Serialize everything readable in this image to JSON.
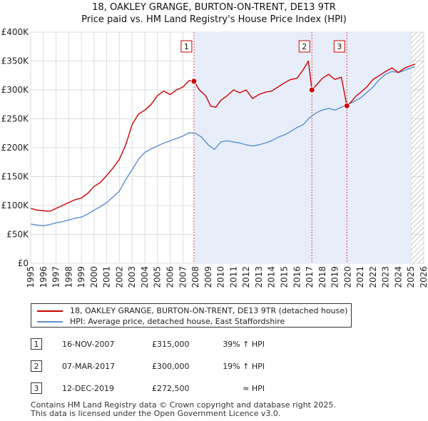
{
  "title_line1": "18, OAKLEY GRANGE, BURTON-ON-TRENT, DE13 9TR",
  "title_line2": "Price paid vs. HM Land Registry's House Price Index (HPI)",
  "chart_data": {
    "type": "line",
    "title": "18, OAKLEY GRANGE, BURTON-ON-TRENT, DE13 9TR — Price paid vs. HM Land Registry's House Price Index (HPI)",
    "xlabel": "",
    "ylabel": "",
    "xlim": [
      1995,
      2026
    ],
    "ylim": [
      0,
      400000
    ],
    "x_ticks": [
      "1995",
      "1996",
      "1997",
      "1998",
      "1999",
      "2000",
      "2001",
      "2002",
      "2003",
      "2004",
      "2005",
      "2006",
      "2007",
      "2008",
      "2009",
      "2010",
      "2011",
      "2012",
      "2013",
      "2014",
      "2015",
      "2016",
      "2017",
      "2018",
      "2019",
      "2020",
      "2021",
      "2022",
      "2023",
      "2024",
      "2025",
      "2026"
    ],
    "y_ticks": [
      {
        "value": 0,
        "label": "£0"
      },
      {
        "value": 50000,
        "label": "£50K"
      },
      {
        "value": 100000,
        "label": "£100K"
      },
      {
        "value": 150000,
        "label": "£150K"
      },
      {
        "value": 200000,
        "label": "£200K"
      },
      {
        "value": 250000,
        "label": "£250K"
      },
      {
        "value": 300000,
        "label": "£300K"
      },
      {
        "value": 350000,
        "label": "£350K"
      },
      {
        "value": 400000,
        "label": "£400K"
      }
    ],
    "grid": true,
    "shaded_ranges": [
      [
        2007.88,
        2025.0
      ]
    ],
    "hatched_from": 2025.0,
    "colors": {
      "property": "#cc0000",
      "hpi": "#5b8fd0",
      "shade": "#e8eef9"
    },
    "series": [
      {
        "name": "18, OAKLEY GRANGE, BURTON-ON-TRENT, DE13 9TR (detached house)",
        "x": [
          1995.0,
          1995.5,
          1996.0,
          1996.5,
          1997.0,
          1997.5,
          1998.0,
          1998.5,
          1999.0,
          1999.5,
          2000.0,
          2000.5,
          2001.0,
          2001.5,
          2002.0,
          2002.5,
          2003.0,
          2003.5,
          2004.0,
          2004.5,
          2005.0,
          2005.5,
          2006.0,
          2006.5,
          2007.0,
          2007.5,
          2007.88,
          2008.3,
          2008.8,
          2009.2,
          2009.6,
          2010.0,
          2010.5,
          2011.0,
          2011.5,
          2012.0,
          2012.5,
          2013.0,
          2013.5,
          2014.0,
          2014.5,
          2015.0,
          2015.5,
          2016.0,
          2016.5,
          2016.9,
          2017.18,
          2017.6,
          2018.0,
          2018.5,
          2019.0,
          2019.5,
          2019.94,
          2020.3,
          2020.7,
          2021.0,
          2021.5,
          2022.0,
          2022.5,
          2023.0,
          2023.5,
          2024.0,
          2024.5,
          2025.0,
          2025.3
        ],
        "values": [
          95000,
          92000,
          91000,
          90000,
          95000,
          100000,
          105000,
          110000,
          113000,
          121000,
          133000,
          140000,
          152000,
          165000,
          180000,
          205000,
          240000,
          258000,
          265000,
          275000,
          290000,
          298000,
          292000,
          300000,
          305000,
          316000,
          315000,
          300000,
          290000,
          272000,
          270000,
          282000,
          290000,
          300000,
          295000,
          300000,
          285000,
          292000,
          296000,
          298000,
          305000,
          312000,
          318000,
          320000,
          335000,
          350000,
          300000,
          310000,
          320000,
          327000,
          318000,
          322000,
          272500,
          280000,
          290000,
          295000,
          305000,
          318000,
          325000,
          332000,
          338000,
          330000,
          338000,
          342000,
          345000
        ]
      },
      {
        "name": "HPI: Average price, detached house, East Staffordshire",
        "x": [
          1995.0,
          1995.5,
          1996.0,
          1996.5,
          1997.0,
          1997.5,
          1998.0,
          1998.5,
          1999.0,
          1999.5,
          2000.0,
          2000.5,
          2001.0,
          2001.5,
          2002.0,
          2002.5,
          2003.0,
          2003.5,
          2004.0,
          2004.5,
          2005.0,
          2005.5,
          2006.0,
          2006.5,
          2007.0,
          2007.5,
          2008.0,
          2008.5,
          2009.0,
          2009.5,
          2010.0,
          2010.5,
          2011.0,
          2011.5,
          2012.0,
          2012.5,
          2013.0,
          2013.5,
          2014.0,
          2014.5,
          2015.0,
          2015.5,
          2016.0,
          2016.5,
          2017.0,
          2017.5,
          2018.0,
          2018.5,
          2019.0,
          2019.5,
          2020.0,
          2020.5,
          2021.0,
          2021.5,
          2022.0,
          2022.5,
          2023.0,
          2023.5,
          2024.0,
          2024.5,
          2025.0,
          2025.3
        ],
        "values": [
          68000,
          66000,
          65000,
          67000,
          70000,
          72000,
          75000,
          78000,
          80000,
          85000,
          92000,
          98000,
          105000,
          115000,
          125000,
          145000,
          162000,
          180000,
          192000,
          198000,
          203000,
          208000,
          212000,
          216000,
          220000,
          226000,
          225000,
          218000,
          205000,
          197000,
          210000,
          212000,
          210000,
          208000,
          205000,
          203000,
          205000,
          208000,
          212000,
          218000,
          222000,
          228000,
          235000,
          240000,
          252000,
          260000,
          265000,
          268000,
          265000,
          270000,
          275000,
          280000,
          286000,
          295000,
          305000,
          318000,
          327000,
          332000,
          330000,
          334000,
          338000,
          340000
        ]
      }
    ],
    "markers": [
      {
        "label": "1",
        "x": 2007.88,
        "value": 315000
      },
      {
        "label": "2",
        "x": 2017.18,
        "value": 300000
      },
      {
        "label": "3",
        "x": 2019.94,
        "value": 272500
      }
    ]
  },
  "legend": {
    "property_label": "18, OAKLEY GRANGE, BURTON-ON-TRENT, DE13 9TR (detached house)",
    "hpi_label": "HPI: Average price, detached house, East Staffordshire"
  },
  "transactions": [
    {
      "num": "1",
      "date": "16-NOV-2007",
      "price": "£315,000",
      "hpi": "39% ↑ HPI"
    },
    {
      "num": "2",
      "date": "07-MAR-2017",
      "price": "£300,000",
      "hpi": "19% ↑ HPI"
    },
    {
      "num": "3",
      "date": "12-DEC-2019",
      "price": "£272,500",
      "hpi": "≈ HPI"
    }
  ],
  "footer": {
    "line1": "Contains HM Land Registry data © Crown copyright and database right 2025.",
    "line2": "This data is licensed under the Open Government Licence v3.0."
  }
}
